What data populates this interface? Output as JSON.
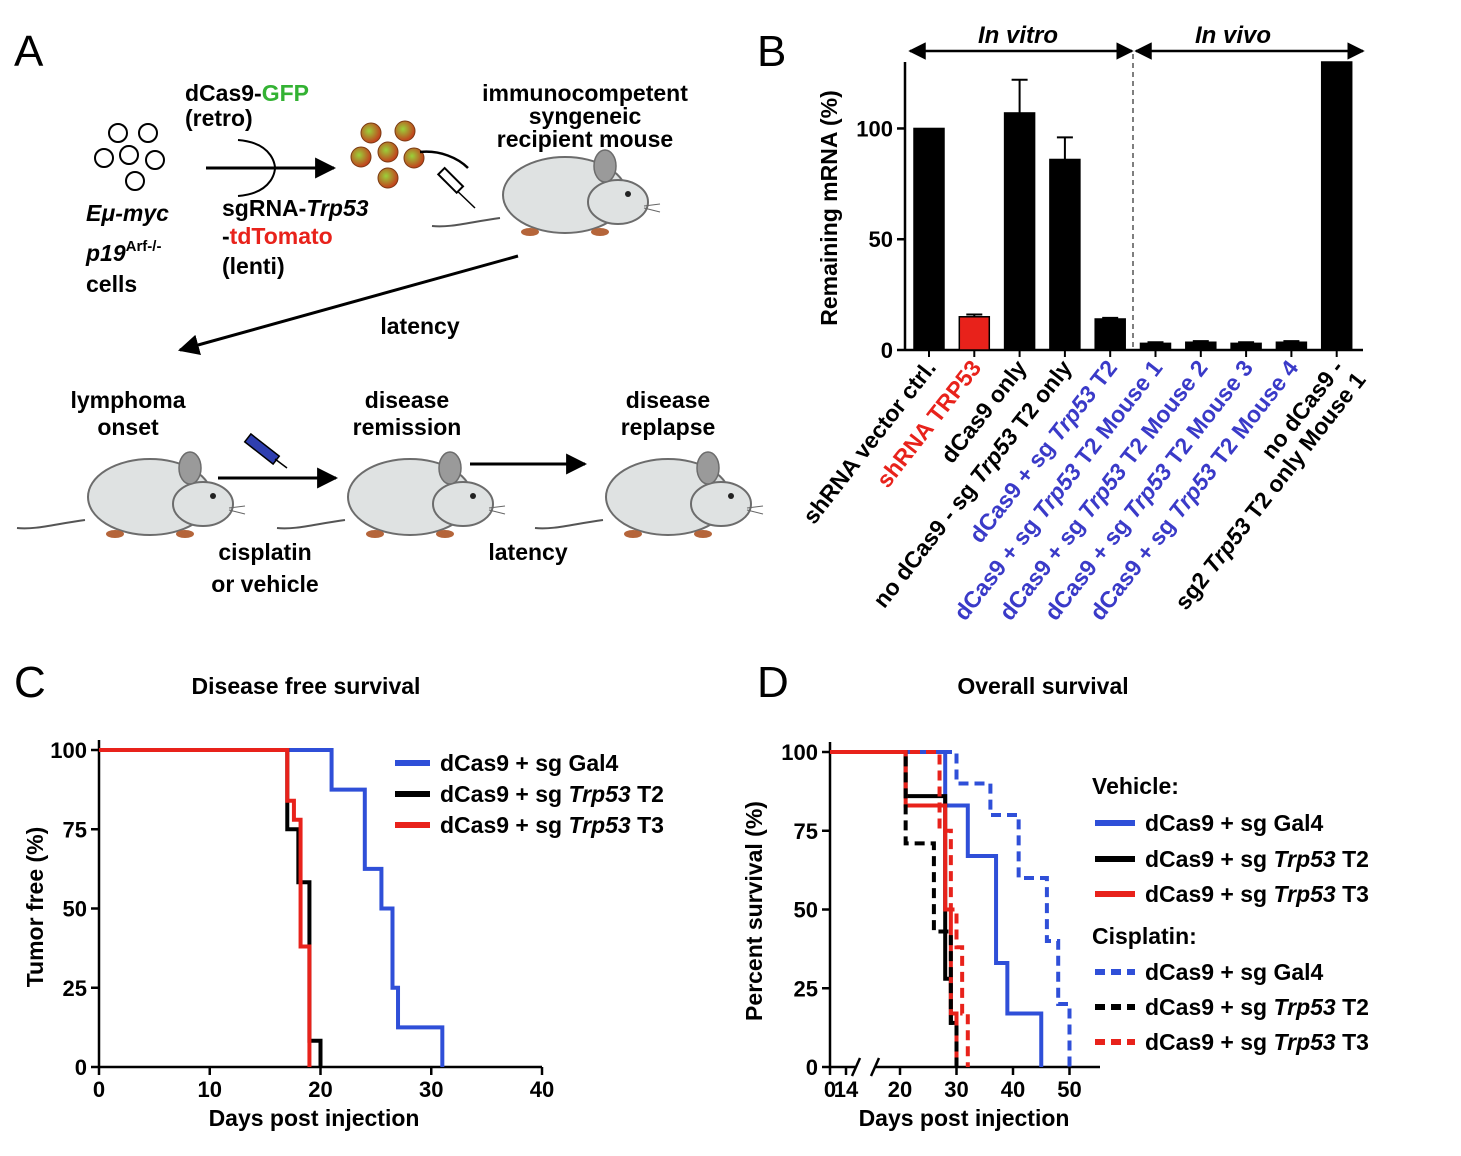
{
  "panels": {
    "A": {
      "letter": "A",
      "cells_line1": "Eμ-myc",
      "cells_line2_main": "p19",
      "cells_line2_sup": "Arf-/-",
      "cells_line3": "cells",
      "dcas9_prefix": "dCas9-",
      "dcas9_gfp": "GFP",
      "retro": "(retro)",
      "sgrna_prefix": "sgRNA-",
      "sgrna_gene": "Trp53",
      "tdtomato_dash": "-",
      "tdtomato": "tdTomato",
      "lenti": "(lenti)",
      "recipient_line1": "immunocompetent",
      "recipient_line2": "syngeneic",
      "recipient_line3": "recipient mouse",
      "latency_1": "latency",
      "onset_line1": "lymphoma",
      "onset_line2": "onset",
      "remission_line1": "disease",
      "remission_line2": "remission",
      "relapse_line1": "disease",
      "relapse_line2": "replapse",
      "treatment_line1": "cisplatin",
      "treatment_line2": "or vehicle",
      "latency_2": "latency"
    },
    "B": {
      "letter": "B"
    },
    "C": {
      "letter": "C"
    },
    "D": {
      "letter": "D"
    }
  },
  "colors": {
    "black": "#000000",
    "red": "#e8221b",
    "blue": "#2f4fd8",
    "label_blue": "#3a3ac8",
    "gfp_green": "#33b233",
    "mouse_body": "#dfe2e2",
    "mouse_ear": "#9a9a9a",
    "paw": "#b5653a"
  },
  "chart_data": [
    {
      "id": "B",
      "type": "bar",
      "ylabel": "Remaining mRNA (%)",
      "yticks": [
        0,
        50,
        100
      ],
      "ylim": [
        0,
        130
      ],
      "region_labels": [
        "In vitro",
        "In vivo"
      ],
      "categories": [
        {
          "label": "shRNA vector ctrl.",
          "value": 100,
          "error": 0,
          "color": "black"
        },
        {
          "label": "shRNA TRP53",
          "value": 15,
          "error": 1,
          "color": "red"
        },
        {
          "label": "dCas9 only",
          "value": 107,
          "error": 15,
          "color": "black"
        },
        {
          "label": "no dCas9 - sg Trp53 T2 only",
          "value": 86,
          "error": 10,
          "color": "black"
        },
        {
          "label": "dCas9 + sg Trp53 T2",
          "value": 14,
          "error": 0.5,
          "color": "black"
        },
        {
          "label": "dCas9 + sg Trp53 T2 Mouse 1",
          "value": 3,
          "error": 0.5,
          "color": "black"
        },
        {
          "label": "dCas9 + sg Trp53 T2 Mouse 2",
          "value": 3.5,
          "error": 0.5,
          "color": "black"
        },
        {
          "label": "dCas9 + sg Trp53 T2 Mouse 3",
          "value": 3,
          "error": 0.5,
          "color": "black"
        },
        {
          "label": "dCas9 + sg Trp53 T2 Mouse 4",
          "value": 3.5,
          "error": 0.5,
          "color": "black"
        },
        {
          "label": "no dCas9 - sg2 Trp53 T2 only Mouse 1",
          "value": 130,
          "error": 0,
          "color": "black"
        }
      ],
      "label_rows": [
        {
          "parts": [
            {
              "t": "shRNA vector ctrl.",
              "i": false,
              "c": "black"
            }
          ]
        },
        {
          "parts": [
            {
              "t": "shRNA TRP53",
              "i": false,
              "c": "red"
            }
          ]
        },
        {
          "parts": [
            {
              "t": "dCas9 only",
              "i": false,
              "c": "black"
            }
          ]
        },
        {
          "parts": [
            {
              "t": "no dCas9 - sg ",
              "i": false,
              "c": "black"
            },
            {
              "t": "Trp53",
              "i": true,
              "c": "black"
            },
            {
              "t": " T2 only",
              "i": false,
              "c": "black"
            }
          ]
        },
        {
          "parts": [
            {
              "t": "dCas9 + sg ",
              "i": false,
              "c": "label_blue"
            },
            {
              "t": "Trp53",
              "i": true,
              "c": "label_blue"
            },
            {
              "t": " T2",
              "i": false,
              "c": "label_blue"
            }
          ]
        },
        {
          "parts": [
            {
              "t": "dCas9 + sg ",
              "i": false,
              "c": "label_blue"
            },
            {
              "t": "Trp53",
              "i": true,
              "c": "label_blue"
            },
            {
              "t": " T2 Mouse 1",
              "i": false,
              "c": "label_blue"
            }
          ]
        },
        {
          "parts": [
            {
              "t": "dCas9 + sg ",
              "i": false,
              "c": "label_blue"
            },
            {
              "t": "Trp53",
              "i": true,
              "c": "label_blue"
            },
            {
              "t": " T2 Mouse 2",
              "i": false,
              "c": "label_blue"
            }
          ]
        },
        {
          "parts": [
            {
              "t": "dCas9 + sg ",
              "i": false,
              "c": "label_blue"
            },
            {
              "t": "Trp53",
              "i": true,
              "c": "label_blue"
            },
            {
              "t": " T2 Mouse 3",
              "i": false,
              "c": "label_blue"
            }
          ]
        },
        {
          "parts": [
            {
              "t": "dCas9 + sg ",
              "i": false,
              "c": "label_blue"
            },
            {
              "t": "Trp53",
              "i": true,
              "c": "label_blue"
            },
            {
              "t": " T2 Mouse 4",
              "i": false,
              "c": "label_blue"
            }
          ]
        },
        {
          "parts": [
            {
              "t": "no dCas9 -",
              "i": false,
              "c": "black"
            }
          ],
          "second": [
            {
              "t": "sg2 ",
              "i": false,
              "c": "black"
            },
            {
              "t": "Trp53",
              "i": true,
              "c": "black"
            },
            {
              "t": " T2 only Mouse 1",
              "i": false,
              "c": "black"
            }
          ]
        }
      ]
    },
    {
      "id": "C",
      "type": "line",
      "title": "Disease free survival",
      "xlabel": "Days post injection",
      "ylabel": "Tumor free  (%)",
      "xlim": [
        0,
        40
      ],
      "ylim": [
        0,
        100
      ],
      "xticks": [
        0,
        10,
        20,
        30,
        40
      ],
      "yticks": [
        0,
        25,
        50,
        75,
        100
      ],
      "series": [
        {
          "name_parts": [
            {
              "t": "dCas9 + sg Gal4",
              "i": false
            }
          ],
          "color": "blue",
          "dash": false,
          "x": [
            0,
            21,
            21,
            24,
            24,
            25.5,
            25.5,
            26.5,
            26.5,
            27,
            27,
            31,
            31
          ],
          "y": [
            100,
            100,
            87.5,
            87.5,
            62.5,
            62.5,
            50,
            50,
            25,
            25,
            12.5,
            12.5,
            0
          ]
        },
        {
          "name_parts": [
            {
              "t": "dCas9 + sg ",
              "i": false
            },
            {
              "t": "Trp53",
              "i": true
            },
            {
              "t": " T2",
              "i": false
            }
          ],
          "color": "black",
          "dash": false,
          "x": [
            0,
            17,
            17,
            18,
            18,
            19,
            19,
            20,
            20
          ],
          "y": [
            100,
            100,
            75,
            75,
            58.3,
            58.3,
            8.3,
            8.3,
            0
          ]
        },
        {
          "name_parts": [
            {
              "t": "dCas9 + sg ",
              "i": false
            },
            {
              "t": "Trp53",
              "i": true
            },
            {
              "t": " T3",
              "i": false
            }
          ],
          "color": "red",
          "dash": false,
          "x": [
            0,
            17,
            17,
            17.6,
            17.6,
            18.2,
            18.2,
            19,
            19
          ],
          "y": [
            100,
            100,
            84,
            84,
            78,
            78,
            38,
            38,
            0
          ]
        }
      ]
    },
    {
      "id": "D",
      "type": "line",
      "title": "Overall survival",
      "xlabel": "Days post injection",
      "ylabel": "Percent survival (%)",
      "xlim": [
        0,
        55
      ],
      "ylim": [
        0,
        100
      ],
      "axis_break": [
        14,
        20
      ],
      "xticks": [
        0,
        14,
        20,
        30,
        40,
        50
      ],
      "yticks": [
        0,
        25,
        50,
        75,
        100
      ],
      "legend_groups": [
        "Vehicle:",
        "Cisplatin:"
      ],
      "series": [
        {
          "group": 0,
          "name_parts": [
            {
              "t": "dCas9 + sg Gal4",
              "i": false
            }
          ],
          "color": "blue",
          "dash": false,
          "x": [
            0,
            28,
            28,
            32,
            32,
            37,
            37,
            39,
            39,
            45,
            45
          ],
          "y": [
            100,
            100,
            83,
            83,
            67,
            67,
            33,
            33,
            17,
            17,
            0
          ]
        },
        {
          "group": 0,
          "name_parts": [
            {
              "t": "dCas9 + sg ",
              "i": false
            },
            {
              "t": "Trp53",
              "i": true
            },
            {
              "t": " T2",
              "i": false
            }
          ],
          "color": "black",
          "dash": false,
          "x": [
            0,
            21,
            21,
            28,
            28,
            29,
            29,
            30,
            30
          ],
          "y": [
            100,
            100,
            86,
            86,
            28,
            28,
            14,
            14,
            0
          ]
        },
        {
          "group": 0,
          "name_parts": [
            {
              "t": "dCas9 + sg ",
              "i": false
            },
            {
              "t": "Trp53",
              "i": true
            },
            {
              "t": " T3",
              "i": false
            }
          ],
          "color": "red",
          "dash": false,
          "x": [
            0,
            21,
            21,
            28,
            28,
            29,
            29,
            30,
            30
          ],
          "y": [
            100,
            100,
            83,
            83,
            50,
            50,
            17,
            17,
            0
          ]
        },
        {
          "group": 1,
          "name_parts": [
            {
              "t": "dCas9 + sg Gal4",
              "i": false
            }
          ],
          "color": "blue",
          "dash": true,
          "x": [
            0,
            30,
            30,
            36,
            36,
            41,
            41,
            46,
            46,
            48,
            48,
            50,
            50
          ],
          "y": [
            100,
            100,
            90,
            90,
            80,
            80,
            60,
            60,
            40,
            40,
            20,
            20,
            0
          ]
        },
        {
          "group": 1,
          "name_parts": [
            {
              "t": "dCas9 + sg ",
              "i": false
            },
            {
              "t": "Trp53",
              "i": true
            },
            {
              "t": " T2",
              "i": false
            }
          ],
          "color": "black",
          "dash": true,
          "x": [
            0,
            21,
            21,
            26,
            26,
            29,
            29,
            30,
            30
          ],
          "y": [
            100,
            100,
            71,
            71,
            43,
            43,
            14,
            14,
            0
          ]
        },
        {
          "group": 1,
          "name_parts": [
            {
              "t": "dCas9 + sg ",
              "i": false
            },
            {
              "t": "Trp53",
              "i": true
            },
            {
              "t": " T3",
              "i": false
            }
          ],
          "color": "red",
          "dash": true,
          "x": [
            0,
            27,
            27,
            29,
            29,
            30,
            30,
            31,
            31,
            32,
            32
          ],
          "y": [
            100,
            100,
            75,
            75,
            50,
            50,
            38,
            38,
            17,
            17,
            0
          ]
        }
      ]
    }
  ]
}
